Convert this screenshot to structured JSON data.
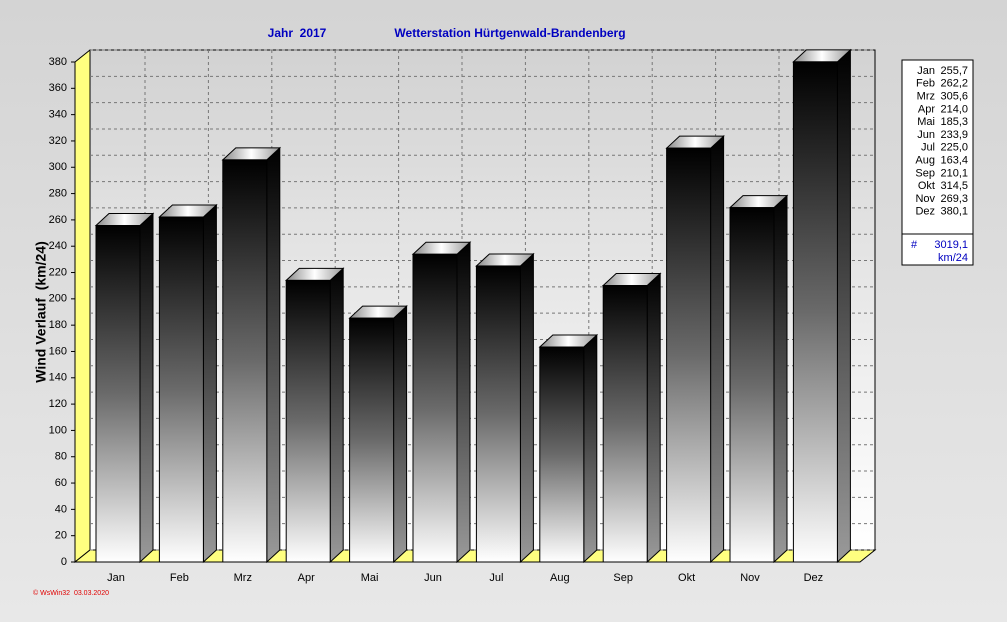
{
  "chart_data": {
    "type": "bar3d",
    "title": "Jahr  2017",
    "subtitle": "Wetterstation Hürtgenwald-Brandenberg",
    "y_label": "Wind Verlauf  (km/24)",
    "footer": "© WsWin32  03.03.2020",
    "categories": [
      "Jan",
      "Feb",
      "Mrz",
      "Apr",
      "Mai",
      "Jun",
      "Jul",
      "Aug",
      "Sep",
      "Okt",
      "Nov",
      "Dez"
    ],
    "values": [
      255.7,
      262.2,
      305.6,
      214.0,
      185.3,
      233.9,
      225.0,
      163.4,
      210.1,
      314.5,
      269.3,
      380.1
    ],
    "value_labels": [
      "255,7",
      "262,2",
      "305,6",
      "214,0",
      "185,3",
      "233,9",
      "225,0",
      "163,4",
      "210,1",
      "314,5",
      "269,3",
      "380,1"
    ],
    "legend_total": {
      "symbol": "#",
      "text": "3019,1",
      "unit": "km/24"
    },
    "ylim": [
      0,
      380
    ],
    "yticks": [
      0,
      20,
      40,
      60,
      80,
      100,
      120,
      140,
      160,
      180,
      200,
      220,
      240,
      260,
      280,
      300,
      320,
      340,
      360,
      380
    ],
    "grid": true,
    "wall_color": "#ffff80"
  }
}
